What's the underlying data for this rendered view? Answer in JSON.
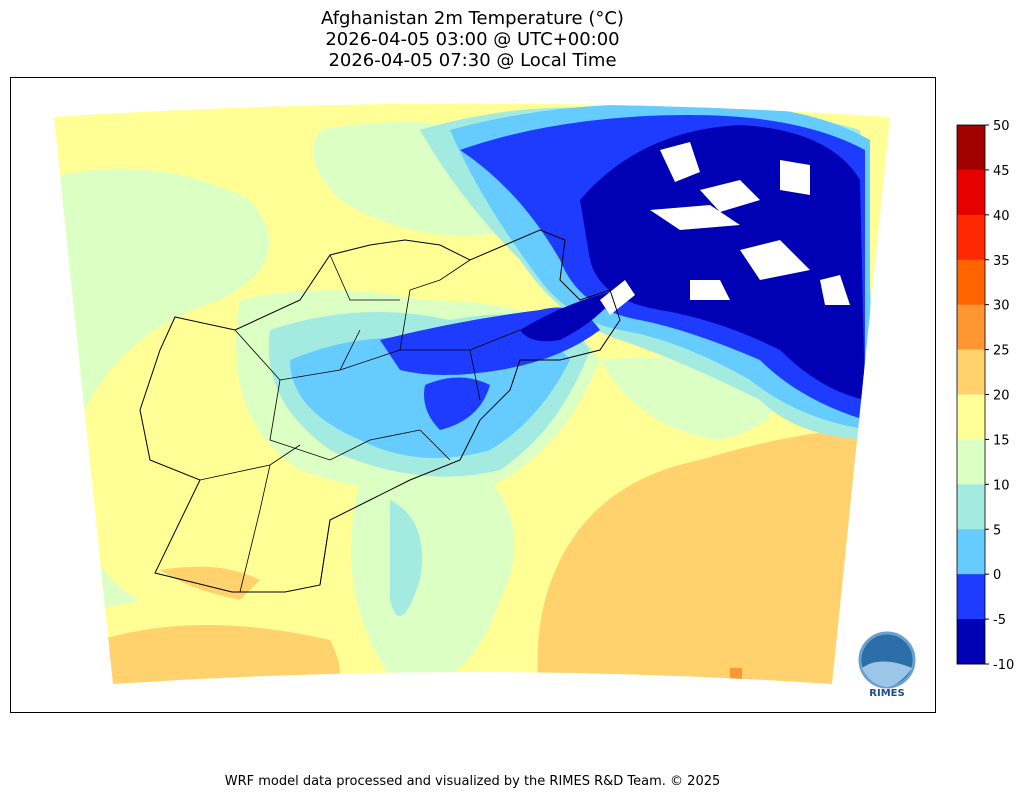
{
  "title": {
    "line1": "Afghanistan 2m Temperature (°C)",
    "line2": "2026-04-05 03:00 @ UTC+00:00",
    "line3": "2026-04-05 07:30 @ Local Time"
  },
  "colorbar": {
    "ticks": [
      "50",
      "45",
      "40",
      "35",
      "30",
      "25",
      "20",
      "15",
      "10",
      "5",
      "0",
      "-5",
      "-10"
    ],
    "colors": [
      "#a00000",
      "#e60000",
      "#ff2800",
      "#ff6400",
      "#ff9632",
      "#ffd26e",
      "#ffff96",
      "#dcffc3",
      "#a3ebe1",
      "#66ccff",
      "#1e3cff",
      "#0000b4"
    ]
  },
  "logo": {
    "text": "RIMES"
  },
  "footer": "WRF model data processed and visualized by the RIMES R&D Team. © 2025"
}
